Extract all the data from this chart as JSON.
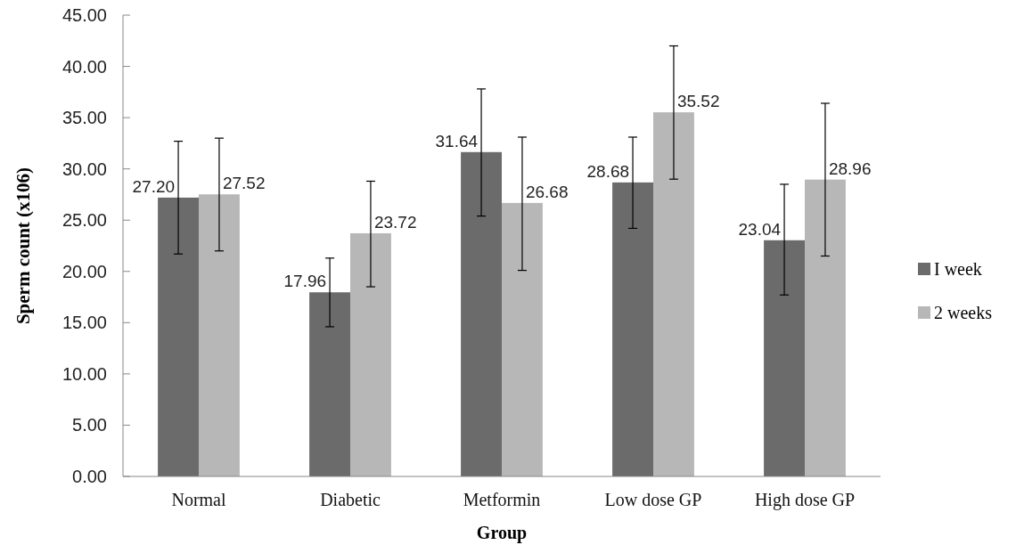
{
  "chart_data": {
    "type": "bar",
    "xlabel": "Group",
    "ylabel": "Sperm count (x106)",
    "categories": [
      "Normal",
      "Diabetic",
      "Metformin",
      "Low dose GP",
      "High dose GP"
    ],
    "series": [
      {
        "name": "I week",
        "color": "#6b6b6b",
        "values": [
          27.2,
          17.96,
          31.64,
          28.68,
          23.04
        ],
        "value_labels": [
          "27.20",
          "17.96",
          "31.64",
          "28.68",
          "23.04"
        ],
        "errors": [
          [
            21.7,
            32.7
          ],
          [
            14.6,
            21.3
          ],
          [
            25.4,
            37.8
          ],
          [
            24.2,
            33.1
          ],
          [
            17.7,
            28.5
          ]
        ]
      },
      {
        "name": "2 weeks",
        "color": "#b7b7b7",
        "values": [
          27.52,
          23.72,
          26.68,
          35.52,
          28.96
        ],
        "value_labels": [
          "27.52",
          "23.72",
          "26.68",
          "35.52",
          "28.96"
        ],
        "errors": [
          [
            22.0,
            33.0
          ],
          [
            18.5,
            28.8
          ],
          [
            20.1,
            33.1
          ],
          [
            29.0,
            42.0
          ],
          [
            21.5,
            36.4
          ]
        ]
      }
    ],
    "ylim": [
      0,
      45
    ],
    "yticks": [
      {
        "value": 0,
        "label": "0.00"
      },
      {
        "value": 5,
        "label": "5.00"
      },
      {
        "value": 10,
        "label": "10.00"
      },
      {
        "value": 15,
        "label": "15.00"
      },
      {
        "value": 20,
        "label": "20.00"
      },
      {
        "value": 25,
        "label": "25.00"
      },
      {
        "value": 30,
        "label": "30.00"
      },
      {
        "value": 35,
        "label": "35.00"
      },
      {
        "value": 40,
        "label": "40.00"
      },
      {
        "value": 45,
        "label": "45.00"
      }
    ],
    "legend": "right",
    "grid": false
  }
}
